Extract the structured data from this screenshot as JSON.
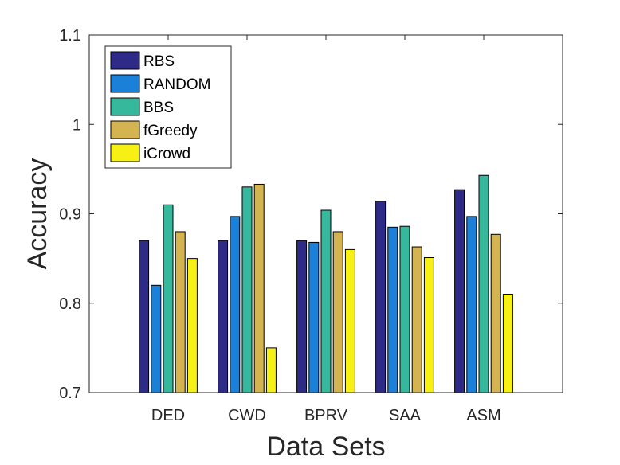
{
  "chart_data": {
    "type": "bar",
    "title": "",
    "xlabel": "Data Sets",
    "ylabel": "Accuracy",
    "ylim": [
      0.7,
      1.1
    ],
    "yticks": [
      "0.7",
      "0.8",
      "0.9",
      "1",
      "1.1"
    ],
    "grid": false,
    "legend_position": "top-left",
    "categories": [
      "DED",
      "CWD",
      "BPRV",
      "SAA",
      "ASM"
    ],
    "series": [
      {
        "name": "RBS",
        "color": "#2e2a87",
        "values": [
          0.87,
          0.87,
          0.87,
          0.914,
          0.927
        ]
      },
      {
        "name": "RANDOM",
        "color": "#1a80d8",
        "values": [
          0.82,
          0.897,
          0.868,
          0.885,
          0.897
        ]
      },
      {
        "name": "BBS",
        "color": "#35b89c",
        "values": [
          0.91,
          0.93,
          0.904,
          0.886,
          0.943
        ]
      },
      {
        "name": "fGreedy",
        "color": "#d3b450",
        "values": [
          0.88,
          0.933,
          0.88,
          0.863,
          0.877
        ]
      },
      {
        "name": "iCrowd",
        "color": "#f6f014",
        "values": [
          0.85,
          0.75,
          0.86,
          0.851,
          0.81
        ]
      }
    ]
  }
}
